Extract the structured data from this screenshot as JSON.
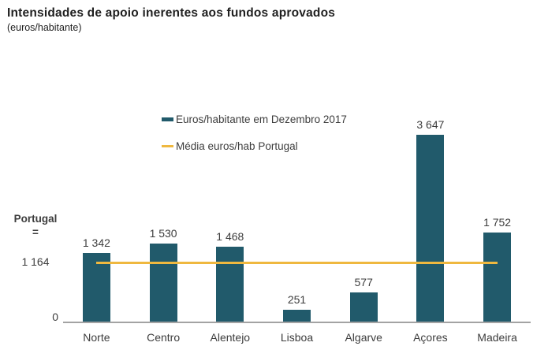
{
  "title": "Intensidades de apoio inerentes aos fundos aprovados",
  "subtitle": "(euros/habitante)",
  "legend": {
    "bars_label": "Euros/habitante em Dezembro 2017",
    "line_label": "Média euros/hab Portugal"
  },
  "axis": {
    "zero_label": "0",
    "portugal_label": "Portugal",
    "equals_label": "=",
    "mean_value_label": "1 164"
  },
  "colors": {
    "bar": "#215a6b",
    "mean_line": "#efb83f",
    "axis_line": "#a3a3a3",
    "text": "#3d3d3d"
  },
  "chart_data": {
    "type": "bar",
    "title": "Intensidades de apoio inerentes aos fundos aprovados",
    "ylabel": "euros/habitante",
    "categories": [
      "Norte",
      "Centro",
      "Alentejo",
      "Lisboa",
      "Algarve",
      "Açores",
      "Madeira"
    ],
    "values": [
      1342,
      1530,
      1468,
      251,
      577,
      3647,
      1752
    ],
    "value_labels": [
      "1 342",
      "1 530",
      "1 468",
      "251",
      "577",
      "3 647",
      "1 752"
    ],
    "series": [
      {
        "name": "Euros/habitante em Dezembro 2017",
        "type": "bar",
        "values": [
          1342,
          1530,
          1468,
          251,
          577,
          3647,
          1752
        ]
      },
      {
        "name": "Média euros/hab Portugal",
        "type": "line",
        "value": 1164
      }
    ],
    "mean_value": 1164,
    "mean_value_label": "1 164",
    "ylim": [
      0,
      3800
    ],
    "grid": false,
    "legend_position": "top-center"
  }
}
